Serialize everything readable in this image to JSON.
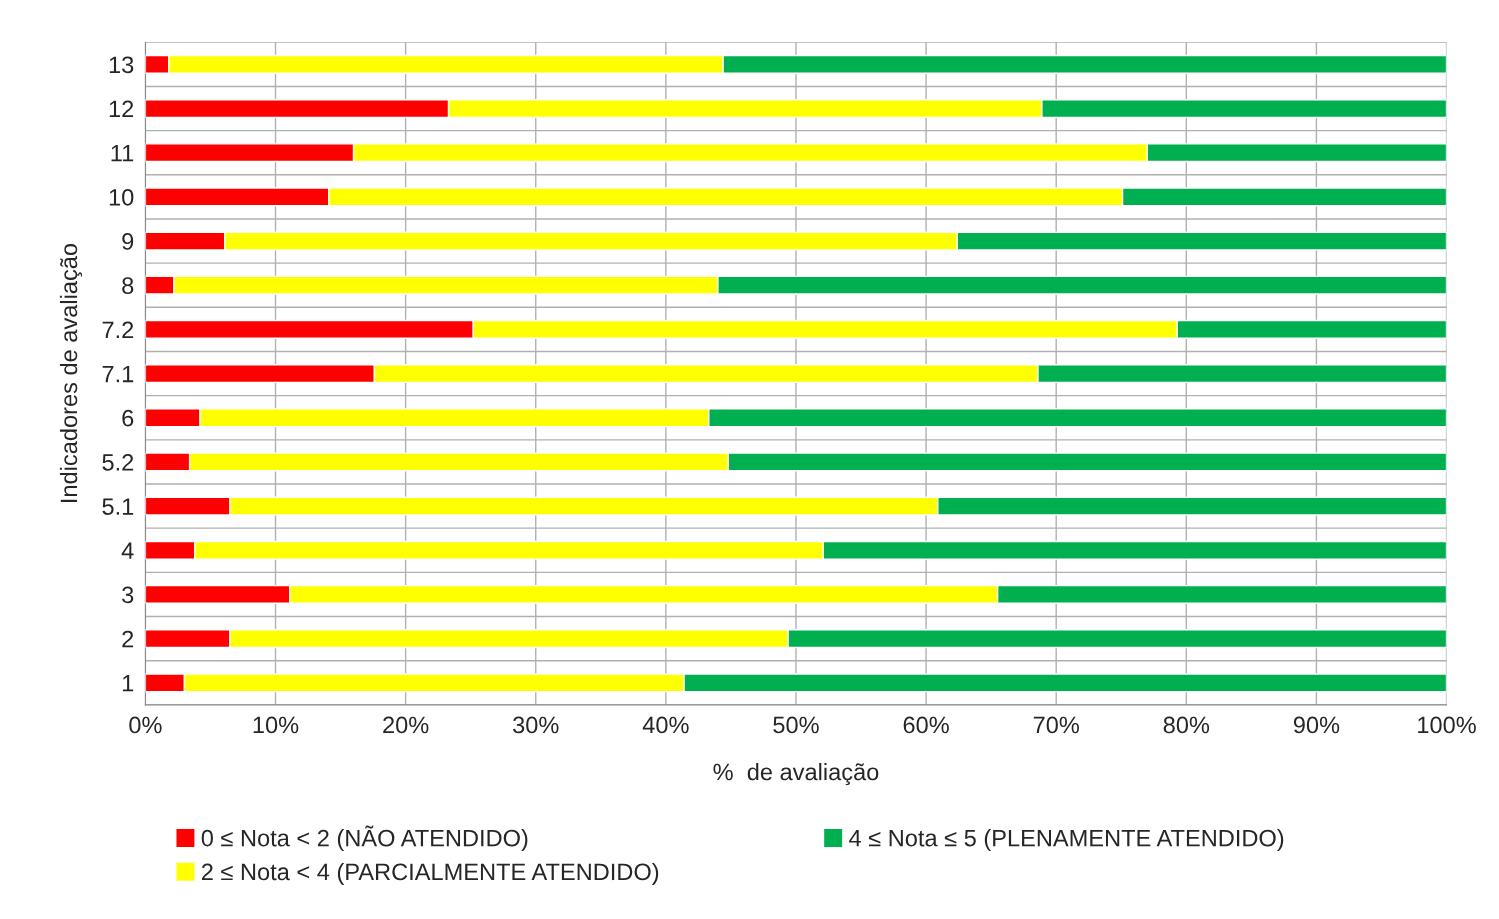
{
  "chart_data": {
    "type": "bar",
    "orientation": "horizontal",
    "stacked": true,
    "xlabel": "%  de avaliação",
    "ylabel": "Indicadores de avaliação",
    "categories": [
      "13",
      "12",
      "11",
      "10",
      "9",
      "8",
      "7.2",
      "7.1",
      "6",
      "5.2",
      "5.1",
      "4",
      "3",
      "2",
      "1"
    ],
    "series": [
      {
        "name": "0 ≤ Nota < 2 (NÃO ATENDIDO)",
        "color": "#ff0000",
        "values": [
          1.8,
          23.3,
          16.0,
          14.1,
          6.1,
          2.2,
          25.2,
          17.6,
          4.2,
          3.4,
          6.5,
          3.8,
          11.1,
          6.5,
          3.0
        ]
      },
      {
        "name": "2 ≤ Nota < 4 (PARCIALMENTE ATENDIDO)",
        "color": "#ffff00",
        "values": [
          42.6,
          45.6,
          61.0,
          61.0,
          56.3,
          41.8,
          54.1,
          51.0,
          39.1,
          41.4,
          54.4,
          48.3,
          54.4,
          42.9,
          38.4
        ]
      },
      {
        "name": "4 ≤ Nota ≤ 5 (PLENAMENTE ATENDIDO)",
        "color": "#00b050",
        "values": [
          55.6,
          31.1,
          23.0,
          24.9,
          37.6,
          56.0,
          20.7,
          31.4,
          56.7,
          55.2,
          39.1,
          47.9,
          34.5,
          50.6,
          58.6
        ]
      }
    ],
    "xlim": [
      0,
      100
    ],
    "xticks": [
      {
        "value": 0,
        "label": "0%"
      },
      {
        "value": 10,
        "label": "10%"
      },
      {
        "value": 20,
        "label": "20%"
      },
      {
        "value": 30,
        "label": "30%"
      },
      {
        "value": 40,
        "label": "40%"
      },
      {
        "value": 50,
        "label": "50%"
      },
      {
        "value": 60,
        "label": "60%"
      },
      {
        "value": 70,
        "label": "70%"
      },
      {
        "value": 80,
        "label": "80%"
      },
      {
        "value": 90,
        "label": "90%"
      },
      {
        "value": 100,
        "label": "100%"
      }
    ],
    "grid": true,
    "legend": "bottom"
  }
}
